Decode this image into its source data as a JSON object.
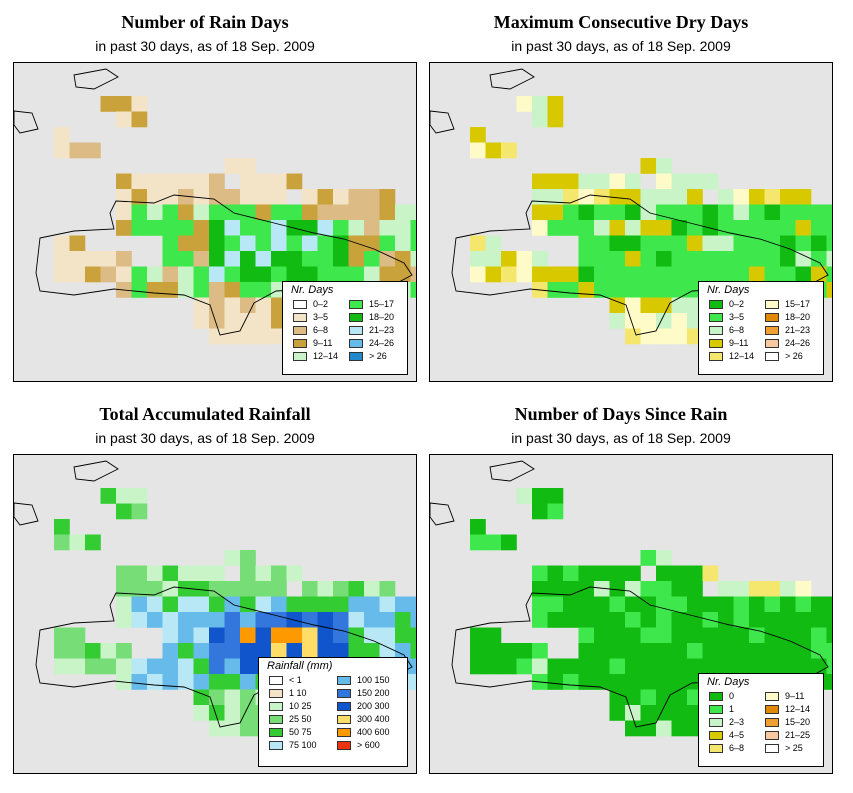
{
  "panels": [
    {
      "title": "Number of Rain Days",
      "subtitle": "in past 30 days, as of  18 Sep. 2009",
      "legend_title": "Nr. Days",
      "legend": [
        {
          "label": "0–2",
          "color": "#ffffff"
        },
        {
          "label": "3–5",
          "color": "#f3e4c8"
        },
        {
          "label": "6–8",
          "color": "#dcbb85"
        },
        {
          "label": "9–11",
          "color": "#c9a23c"
        },
        {
          "label": "12–14",
          "color": "#c8f4c8"
        },
        {
          "label": "15–17",
          "color": "#3ee84c"
        },
        {
          "label": "18–20",
          "color": "#11bb11"
        },
        {
          "label": "21–23",
          "color": "#b8e8f5"
        },
        {
          "label": "24–26",
          "color": "#66bbea"
        },
        {
          "label": "> 26",
          "color": "#2288cc"
        }
      ]
    },
    {
      "title": "Maximum Consecutive Dry Days",
      "subtitle": "in past 30 days, as of  18 Sep. 2009",
      "legend_title": "Nr. Days",
      "legend": [
        {
          "label": "0–2",
          "color": "#11bb11"
        },
        {
          "label": "3–5",
          "color": "#3ee84c"
        },
        {
          "label": "6–8",
          "color": "#c8f4c8"
        },
        {
          "label": "9–11",
          "color": "#d8c800"
        },
        {
          "label": "12–14",
          "color": "#f5e66e"
        },
        {
          "label": "15–17",
          "color": "#fffbc8"
        },
        {
          "label": "18–20",
          "color": "#e08800"
        },
        {
          "label": "21–23",
          "color": "#f0a030"
        },
        {
          "label": "24–26",
          "color": "#f8c8a0"
        },
        {
          "label": "> 26",
          "color": "#ffffff"
        }
      ]
    },
    {
      "title": "Total Accumulated Rainfall",
      "subtitle": "in past 30 days, as of  18 Sep. 2009",
      "legend_title": "Rainfall (mm)",
      "legend": [
        {
          "label": "< 1",
          "color": "#ffffff"
        },
        {
          "label": "1  10",
          "color": "#f3e4c8"
        },
        {
          "label": "10  25",
          "color": "#c8f4c8"
        },
        {
          "label": "25  50",
          "color": "#77dd77"
        },
        {
          "label": "50  75",
          "color": "#33cc33"
        },
        {
          "label": "75  100",
          "color": "#b8e8f5"
        },
        {
          "label": "100  150",
          "color": "#66bbea"
        },
        {
          "label": "150  200",
          "color": "#3377dd"
        },
        {
          "label": "200  300",
          "color": "#1155cc"
        },
        {
          "label": "300  400",
          "color": "#ffdd66"
        },
        {
          "label": "400  600",
          "color": "#ff9900"
        },
        {
          "label": "> 600",
          "color": "#ee3311"
        }
      ]
    },
    {
      "title": "Number of Days Since Rain",
      "subtitle": "in past 30 days, as of  18 Sep. 2009",
      "legend_title": "Nr. Days",
      "legend": [
        {
          "label": "0",
          "color": "#11bb11"
        },
        {
          "label": "1",
          "color": "#3ee84c"
        },
        {
          "label": "2–3",
          "color": "#c8f4c8"
        },
        {
          "label": "4–5",
          "color": "#d8c800"
        },
        {
          "label": "6–8",
          "color": "#f5e66e"
        },
        {
          "label": "9–11",
          "color": "#fffbc8"
        },
        {
          "label": "12–14",
          "color": "#e08800"
        },
        {
          "label": "15–20",
          "color": "#f0a030"
        },
        {
          "label": "21–25",
          "color": "#f8c8a0"
        },
        {
          "label": "> 25",
          "color": "#ffffff"
        }
      ]
    }
  ],
  "map_colors": {
    "background": "#e5e5e5",
    "coastline": "#000000"
  }
}
